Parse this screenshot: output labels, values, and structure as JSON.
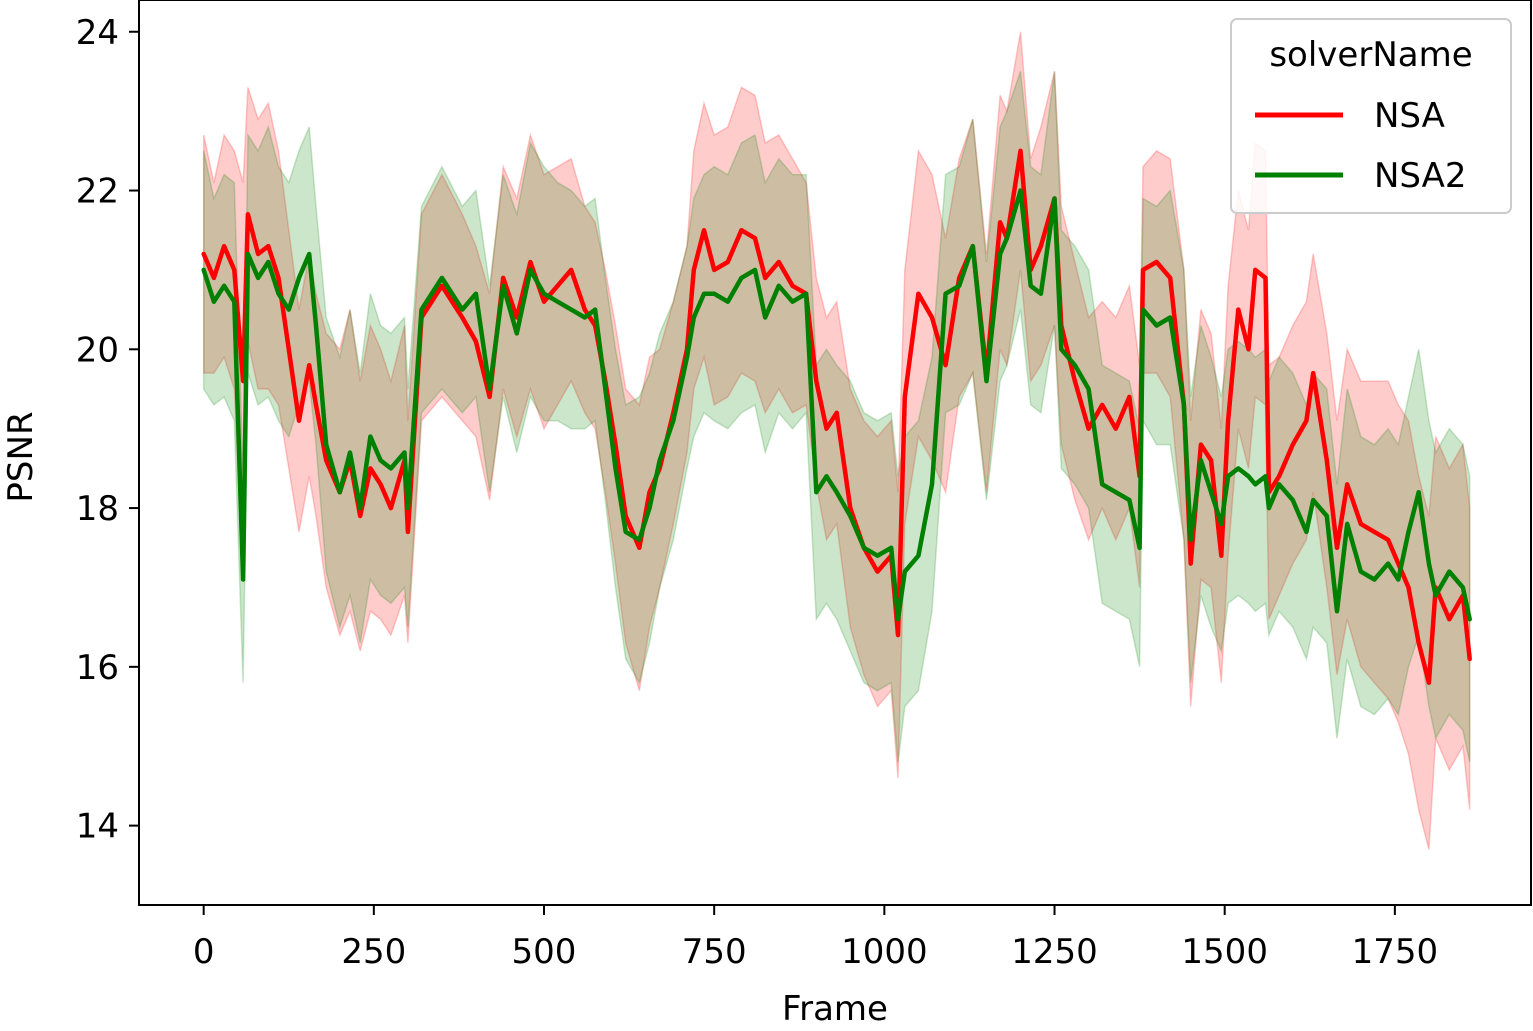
{
  "chart_data": {
    "type": "line",
    "xlabel": "Frame",
    "ylabel": "PSNR",
    "xlim": [
      -95,
      1950
    ],
    "ylim": [
      13.0,
      24.4
    ],
    "x_ticks": [
      0,
      250,
      500,
      750,
      1000,
      1250,
      1500,
      1750
    ],
    "y_ticks": [
      14,
      16,
      18,
      20,
      22,
      24
    ],
    "grid": false,
    "band": "confidence interval (shaded)",
    "legend": {
      "title": "solverName",
      "placement": "top-right"
    },
    "series": [
      {
        "name": "NSA",
        "color": "#ff0000",
        "x": [
          0,
          15,
          30,
          45,
          58,
          65,
          80,
          95,
          110,
          125,
          140,
          155,
          165,
          180,
          200,
          215,
          230,
          245,
          260,
          275,
          295,
          300,
          320,
          350,
          380,
          400,
          420,
          440,
          460,
          480,
          500,
          520,
          540,
          560,
          575,
          590,
          605,
          620,
          640,
          655,
          670,
          690,
          710,
          720,
          735,
          750,
          770,
          790,
          810,
          825,
          845,
          865,
          885,
          900,
          915,
          930,
          950,
          970,
          990,
          1010,
          1020,
          1030,
          1050,
          1070,
          1090,
          1110,
          1130,
          1150,
          1170,
          1180,
          1200,
          1215,
          1230,
          1250,
          1260,
          1280,
          1300,
          1320,
          1340,
          1360,
          1375,
          1380,
          1400,
          1420,
          1440,
          1450,
          1465,
          1480,
          1495,
          1505,
          1520,
          1535,
          1545,
          1560,
          1565,
          1580,
          1600,
          1620,
          1630,
          1650,
          1665,
          1680,
          1700,
          1720,
          1740,
          1755,
          1770,
          1785,
          1800,
          1810,
          1830,
          1850,
          1860
        ],
        "y": [
          21.2,
          20.9,
          21.3,
          21.0,
          19.6,
          21.7,
          21.2,
          21.3,
          20.9,
          20.0,
          19.1,
          19.8,
          19.3,
          18.6,
          18.2,
          18.6,
          17.9,
          18.5,
          18.3,
          18.0,
          18.6,
          17.7,
          20.4,
          20.8,
          20.4,
          20.1,
          19.4,
          20.9,
          20.4,
          21.1,
          20.6,
          20.8,
          21.0,
          20.5,
          20.3,
          19.6,
          18.8,
          17.9,
          17.5,
          18.2,
          18.5,
          19.2,
          20.0,
          21.0,
          21.5,
          21.0,
          21.1,
          21.5,
          21.4,
          20.9,
          21.1,
          20.8,
          20.7,
          19.6,
          19.0,
          19.2,
          18.0,
          17.5,
          17.2,
          17.4,
          16.4,
          19.4,
          20.7,
          20.4,
          19.8,
          20.9,
          21.3,
          19.7,
          21.6,
          21.4,
          22.5,
          21.0,
          21.3,
          21.9,
          20.3,
          19.6,
          19.0,
          19.3,
          19.0,
          19.4,
          18.4,
          21.0,
          21.1,
          20.9,
          19.3,
          17.3,
          18.8,
          18.6,
          17.4,
          19.1,
          20.5,
          20.0,
          21.0,
          20.9,
          18.2,
          18.4,
          18.8,
          19.1,
          19.7,
          18.6,
          17.5,
          18.3,
          17.8,
          17.7,
          17.6,
          17.3,
          17.0,
          16.3,
          15.8,
          17.0,
          16.6,
          16.9,
          16.1
        ]
      },
      {
        "name": "NSA2",
        "color": "#008000",
        "x": [
          0,
          15,
          30,
          45,
          58,
          65,
          80,
          95,
          110,
          125,
          140,
          155,
          165,
          180,
          200,
          215,
          230,
          245,
          260,
          275,
          295,
          300,
          320,
          350,
          380,
          400,
          420,
          440,
          460,
          480,
          500,
          520,
          540,
          560,
          575,
          590,
          605,
          620,
          640,
          655,
          670,
          690,
          710,
          720,
          735,
          750,
          770,
          790,
          810,
          825,
          845,
          865,
          885,
          900,
          915,
          930,
          950,
          970,
          990,
          1010,
          1020,
          1030,
          1050,
          1070,
          1090,
          1110,
          1130,
          1150,
          1170,
          1180,
          1200,
          1215,
          1230,
          1250,
          1260,
          1280,
          1300,
          1320,
          1340,
          1360,
          1375,
          1380,
          1400,
          1420,
          1440,
          1450,
          1465,
          1480,
          1495,
          1505,
          1520,
          1535,
          1545,
          1560,
          1565,
          1580,
          1600,
          1620,
          1630,
          1650,
          1665,
          1680,
          1700,
          1720,
          1740,
          1755,
          1770,
          1785,
          1800,
          1810,
          1830,
          1850,
          1860
        ],
        "y": [
          21.0,
          20.6,
          20.8,
          20.6,
          17.1,
          21.2,
          20.9,
          21.1,
          20.7,
          20.5,
          20.9,
          21.2,
          20.3,
          18.8,
          18.2,
          18.7,
          18.0,
          18.9,
          18.6,
          18.5,
          18.7,
          18.0,
          20.5,
          20.9,
          20.5,
          20.7,
          19.5,
          20.8,
          20.2,
          21.0,
          20.7,
          20.6,
          20.5,
          20.4,
          20.5,
          19.5,
          18.5,
          17.7,
          17.6,
          18.0,
          18.6,
          19.1,
          19.9,
          20.4,
          20.7,
          20.7,
          20.6,
          20.9,
          21.0,
          20.4,
          20.8,
          20.6,
          20.7,
          18.2,
          18.4,
          18.2,
          17.9,
          17.5,
          17.4,
          17.5,
          16.6,
          17.2,
          17.4,
          18.3,
          20.7,
          20.8,
          21.3,
          19.6,
          21.2,
          21.4,
          22.0,
          20.8,
          20.7,
          21.9,
          20.0,
          19.8,
          19.5,
          18.3,
          18.2,
          18.1,
          17.5,
          20.5,
          20.3,
          20.4,
          19.3,
          17.6,
          18.6,
          18.2,
          17.8,
          18.4,
          18.5,
          18.4,
          18.3,
          18.4,
          18.0,
          18.3,
          18.1,
          17.7,
          18.1,
          17.9,
          16.7,
          17.8,
          17.2,
          17.1,
          17.3,
          17.1,
          17.7,
          18.2,
          17.3,
          16.9,
          17.2,
          17.0,
          16.6
        ]
      }
    ],
    "band_width": {
      "NSA": [
        1.5,
        1.2,
        1.4,
        1.5,
        2.5,
        1.6,
        1.7,
        1.8,
        1.6,
        1.5,
        1.4,
        1.4,
        1.4,
        1.6,
        1.8,
        1.9,
        1.7,
        1.8,
        1.7,
        1.6,
        1.7,
        1.4,
        1.3,
        1.4,
        1.3,
        1.2,
        1.3,
        1.4,
        1.5,
        1.6,
        1.6,
        1.5,
        1.4,
        1.3,
        1.3,
        1.4,
        1.5,
        1.6,
        1.8,
        1.7,
        1.5,
        1.4,
        1.3,
        1.5,
        1.6,
        1.7,
        1.7,
        1.8,
        1.8,
        1.7,
        1.6,
        1.6,
        1.4,
        1.3,
        1.4,
        1.4,
        1.5,
        1.6,
        1.7,
        1.7,
        1.8,
        1.6,
        1.8,
        1.8,
        1.6,
        1.5,
        1.6,
        1.5,
        1.6,
        1.6,
        1.5,
        1.4,
        1.5,
        1.6,
        1.5,
        1.5,
        1.4,
        1.3,
        1.4,
        1.4,
        1.4,
        1.3,
        1.4,
        1.5,
        1.7,
        1.8,
        1.7,
        1.6,
        1.6,
        1.7,
        1.5,
        1.5,
        1.6,
        1.6,
        1.6,
        1.5,
        1.5,
        1.5,
        1.5,
        1.6,
        1.6,
        1.7,
        1.8,
        1.9,
        2.0,
        2.0,
        2.1,
        2.1,
        2.1,
        1.9,
        1.9,
        1.9,
        1.9
      ],
      "NSA2": [
        1.5,
        1.3,
        1.4,
        1.5,
        1.3,
        1.5,
        1.6,
        1.7,
        1.6,
        1.6,
        1.6,
        1.6,
        1.5,
        1.6,
        1.7,
        1.8,
        1.7,
        1.8,
        1.7,
        1.7,
        1.7,
        1.5,
        1.3,
        1.4,
        1.3,
        1.3,
        1.3,
        1.4,
        1.5,
        1.6,
        1.6,
        1.5,
        1.5,
        1.4,
        1.4,
        1.4,
        1.5,
        1.6,
        1.8,
        1.7,
        1.6,
        1.5,
        1.4,
        1.5,
        1.5,
        1.6,
        1.6,
        1.7,
        1.7,
        1.7,
        1.6,
        1.6,
        1.5,
        1.6,
        1.6,
        1.6,
        1.7,
        1.7,
        1.7,
        1.7,
        1.8,
        1.7,
        1.7,
        1.6,
        1.5,
        1.5,
        1.6,
        1.5,
        1.6,
        1.6,
        1.5,
        1.5,
        1.5,
        1.6,
        1.5,
        1.5,
        1.5,
        1.5,
        1.5,
        1.5,
        1.5,
        1.4,
        1.5,
        1.6,
        1.7,
        1.8,
        1.7,
        1.7,
        1.6,
        1.6,
        1.6,
        1.6,
        1.6,
        1.6,
        1.6,
        1.6,
        1.6,
        1.6,
        1.6,
        1.6,
        1.6,
        1.7,
        1.7,
        1.7,
        1.7,
        1.7,
        1.7,
        1.8,
        1.8,
        1.8,
        1.8,
        1.8,
        1.8
      ]
    }
  }
}
